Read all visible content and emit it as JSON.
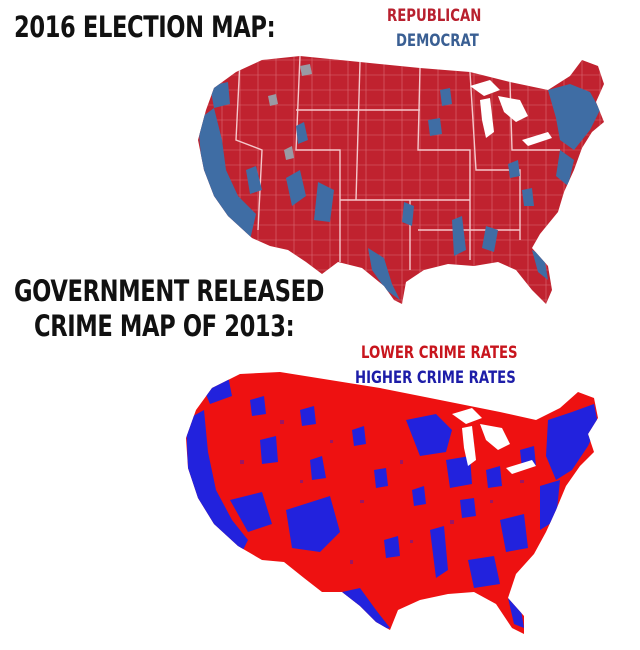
{
  "election_map": {
    "title": "2016 ELECTION MAP:",
    "legend": [
      {
        "label": "REPUBLICAN",
        "color": "#b8202e"
      },
      {
        "label": "DEMOCRAT",
        "color": "#3a5f93"
      }
    ],
    "base_color": "#c0222f",
    "alt_color": "#3f6da4"
  },
  "crime_map": {
    "title_line1": "GOVERNMENT RELEASED",
    "title_line2": "CRIME MAP OF 2013:",
    "legend": [
      {
        "label": "LOWER CRIME RATES",
        "color": "#c8151d"
      },
      {
        "label": "HIGHER CRIME RATES",
        "color": "#1d1da8"
      }
    ],
    "base_color": "#ee1111",
    "alt_color": "#2222dd"
  }
}
